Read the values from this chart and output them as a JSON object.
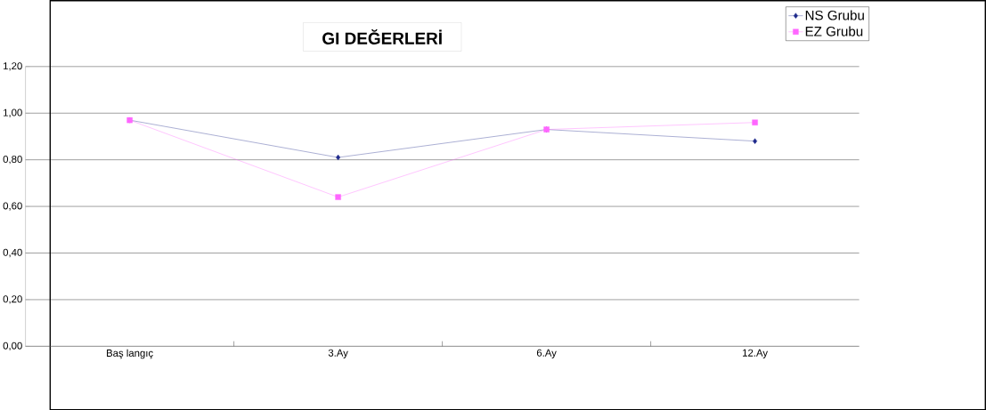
{
  "chart_data": {
    "type": "line",
    "title": "GI DEĞERLERİ",
    "categories": [
      "Baş langıç",
      "3.Ay",
      "6.Ay",
      "12.Ay"
    ],
    "series": [
      {
        "name": "NS Grubu",
        "color": "#1f2a8c",
        "marker": "diamond",
        "values": [
          0.97,
          0.81,
          0.93,
          0.88
        ]
      },
      {
        "name": "EZ Grubu",
        "color": "#ff66ff",
        "marker": "square",
        "values": [
          0.97,
          0.64,
          0.93,
          0.96
        ]
      }
    ],
    "ylim": [
      0,
      1.2
    ],
    "yticks": [
      {
        "value": 0,
        "label": "0,00"
      },
      {
        "value": 0.2,
        "label": "0,20"
      },
      {
        "value": 0.4,
        "label": "0,40"
      },
      {
        "value": 0.6,
        "label": "0,60"
      },
      {
        "value": 0.8,
        "label": "0,80"
      },
      {
        "value": 1.0,
        "label": "1,00"
      },
      {
        "value": 1.2,
        "label": "1,20"
      }
    ],
    "grid": "y",
    "legend": "top right"
  }
}
